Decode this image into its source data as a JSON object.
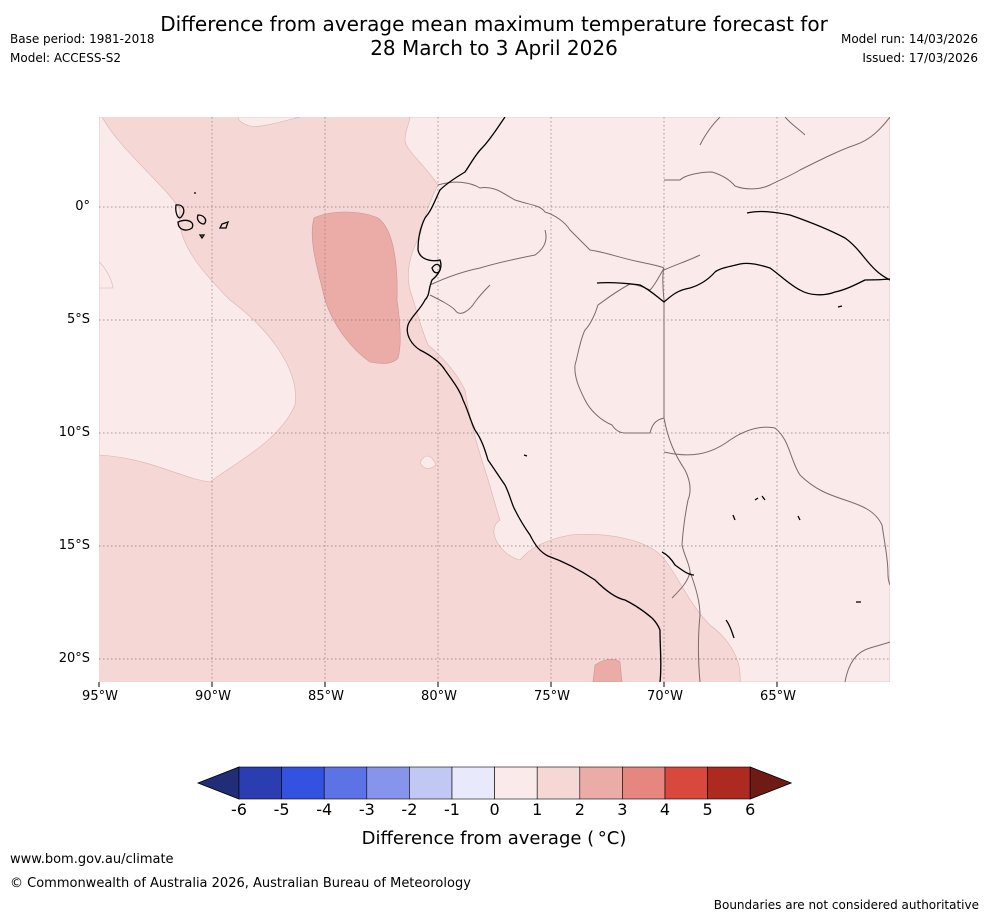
{
  "title_line1": "Difference from average mean maximum temperature forecast for",
  "title_line2": "28 March to 3 April 2026",
  "base_period": "Base period: 1981-2018",
  "model": "Model: ACCESS-S2",
  "model_run": "Model run: 14/03/2026",
  "issued": "Issued: 17/03/2026",
  "map": {
    "lon_range": [
      -95,
      -60
    ],
    "lat_range": [
      4,
      -21
    ],
    "lat_labels": [
      "0°",
      "5°S",
      "10°S",
      "15°S",
      "20°S"
    ],
    "lon_labels": [
      "95°W",
      "90°W",
      "85°W",
      "80°W",
      "75°W",
      "70°W",
      "65°W"
    ]
  },
  "colorbar": {
    "title": "Difference from average ( °C)",
    "tick_labels": [
      "-6",
      "-5",
      "-4",
      "-3",
      "-2",
      "-1",
      "0",
      "1",
      "2",
      "3",
      "4",
      "5",
      "6"
    ],
    "colors": [
      "#222d78",
      "#2a3eb1",
      "#3452e0",
      "#5b73e4",
      "#8695eb",
      "#c2c8f4",
      "#e8eafb",
      "#fbeaea",
      "#f5d7d5",
      "#ebaca8",
      "#e5867f",
      "#d9483d",
      "#ac2a20",
      "#6f1a15"
    ]
  },
  "footer_url": "www.bom.gov.au/climate",
  "copyright": "© Commonwealth of Australia 2026, Australian Bureau of Meteorology",
  "disclaimer": "Boundaries are not considered authoritative"
}
